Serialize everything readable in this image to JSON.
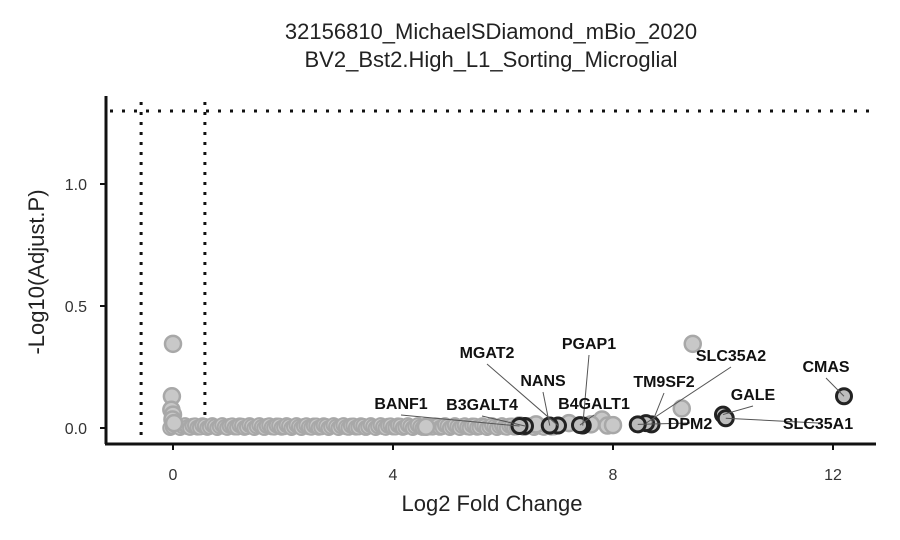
{
  "chart_data": {
    "type": "scatter",
    "title": "32156810_MichaelSDiamond_mBio_2020",
    "subtitle": "BV2_Bst2.High_L1_Sorting_Microglial",
    "xlabel": "Log2 Fold Change",
    "ylabel": "-Log10(Adjust.P)",
    "xlim": [
      -1.2,
      12.8
    ],
    "ylim": [
      -0.06,
      1.4
    ],
    "x_ticks": [
      0,
      4,
      8,
      12
    ],
    "y_ticks": [
      0.0,
      0.5,
      1.0
    ],
    "y_tick_labels": [
      "0.0",
      "0.5",
      "1.0"
    ],
    "thresholds": {
      "x": [
        -0.58,
        0.58
      ],
      "y": 1.3
    },
    "grid": false,
    "colors": {
      "background_points": "#c8c8c8",
      "background_stroke": "#a8a8a8",
      "highlight_stroke": "#222222"
    },
    "background_points": [
      {
        "x": 0.0,
        "y": 0.345
      },
      {
        "x": -0.02,
        "y": 0.13
      },
      {
        "x": -0.03,
        "y": 0.075
      },
      {
        "x": 0.0,
        "y": 0.055
      },
      {
        "x": -0.01,
        "y": 0.035
      },
      {
        "x": 0.02,
        "y": 0.02
      },
      {
        "x": 9.45,
        "y": 0.345
      },
      {
        "x": 9.25,
        "y": 0.08
      },
      {
        "x": 7.8,
        "y": 0.035
      },
      {
        "x": 7.6,
        "y": 0.015
      },
      {
        "x": 7.9,
        "y": 0.01
      },
      {
        "x": 8.0,
        "y": 0.012
      },
      {
        "x": 6.3,
        "y": 0.01
      },
      {
        "x": 6.6,
        "y": 0.015
      },
      {
        "x": 7.2,
        "y": 0.02
      },
      {
        "x": 4.6,
        "y": 0.005
      }
    ],
    "highlighted_points": [
      {
        "label": "MGAT2",
        "x": 7.0,
        "y": 0.01
      },
      {
        "label": "NANS",
        "x": 6.85,
        "y": 0.01
      },
      {
        "label": "PGAP1",
        "x": 7.45,
        "y": 0.01
      },
      {
        "label": "B4GALT1",
        "x": 7.4,
        "y": 0.012
      },
      {
        "label": "B3GALT4",
        "x": 6.4,
        "y": 0.008
      },
      {
        "label": "BANF1",
        "x": 6.3,
        "y": 0.008
      },
      {
        "label": "TM9SF2",
        "x": 8.7,
        "y": 0.015
      },
      {
        "label": "SLC35A2",
        "x": 8.6,
        "y": 0.02
      },
      {
        "label": "DPM2",
        "x": 8.45,
        "y": 0.015
      },
      {
        "label": "GALE",
        "x": 10.0,
        "y": 0.055
      },
      {
        "label": "SLC35A1",
        "x": 10.05,
        "y": 0.04
      },
      {
        "label": "CMAS",
        "x": 12.2,
        "y": 0.13
      }
    ],
    "labels": [
      {
        "text": "MGAT2",
        "dx": 487,
        "dy": 358
      },
      {
        "text": "NANS",
        "dx": 543,
        "dy": 386
      },
      {
        "text": "PGAP1",
        "dx": 589,
        "dy": 349
      },
      {
        "text": "B4GALT1",
        "dx": 594,
        "dy": 409
      },
      {
        "text": "B3GALT4",
        "dx": 482,
        "dy": 410
      },
      {
        "text": "BANF1",
        "dx": 401,
        "dy": 409
      },
      {
        "text": "TM9SF2",
        "dx": 664,
        "dy": 387
      },
      {
        "text": "SLC35A2",
        "dx": 731,
        "dy": 361
      },
      {
        "text": "DPM2",
        "dx": 690,
        "dy": 429
      },
      {
        "text": "GALE",
        "dx": 753,
        "dy": 400
      },
      {
        "text": "SLC35A1",
        "dx": 818,
        "dy": 429
      },
      {
        "text": "CMAS",
        "dx": 826,
        "dy": 372
      }
    ]
  }
}
